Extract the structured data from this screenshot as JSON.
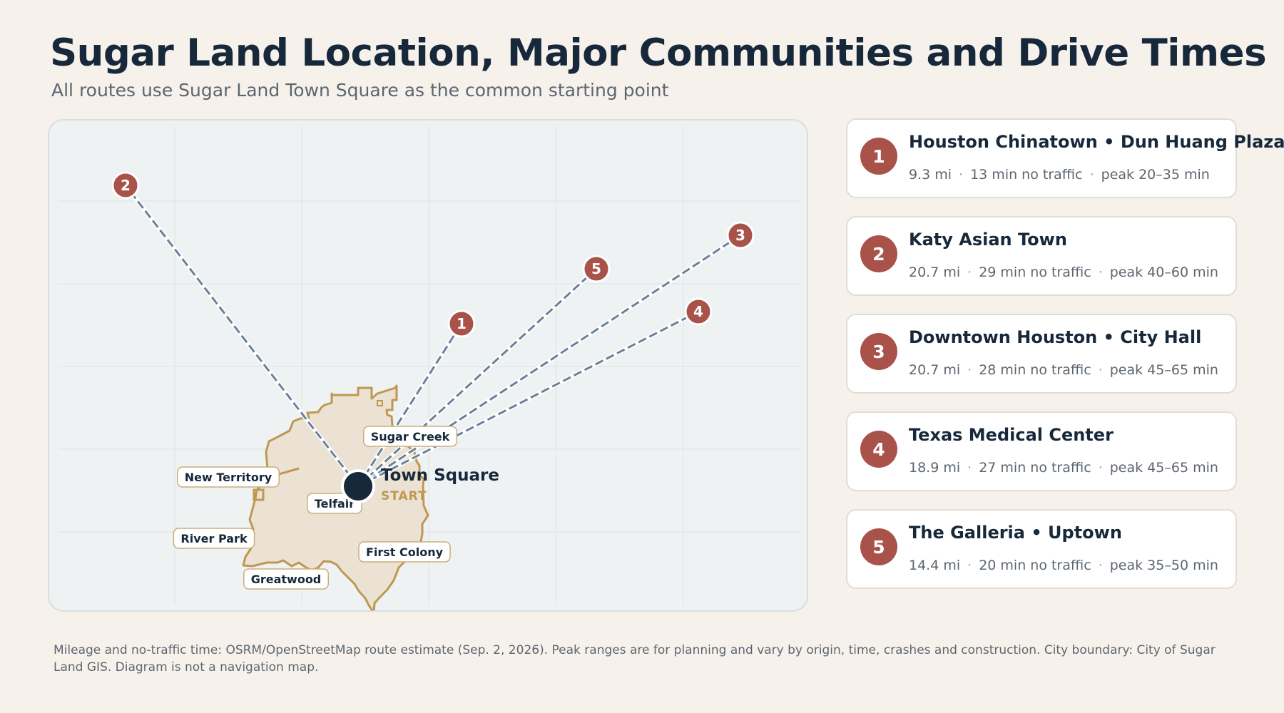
{
  "header": {
    "title": "Sugar Land Location, Major Communities and Drive Times",
    "subtitle": "All routes use Sugar Land Town Square as the common starting point"
  },
  "map": {
    "start": {
      "label": "Town Square",
      "sublabel": "START"
    },
    "neighborhoods": [
      "Sugar Creek",
      "New Territory",
      "Telfair",
      "River Park",
      "First Colony",
      "Greatwood"
    ],
    "markers": [
      "1",
      "2",
      "3",
      "4",
      "5"
    ],
    "colors": {
      "boundary": "#bf9850",
      "city_fill": "#ebe2d4",
      "route": "#6b809a",
      "marker": "#a8524a",
      "start": "#17283a"
    }
  },
  "destinations": [
    {
      "num": "1",
      "name": "Houston Chinatown • Dun Huang Plaza",
      "distance": "9.3 mi",
      "no_traffic": "13 min no traffic",
      "peak": "peak 20–35 min"
    },
    {
      "num": "2",
      "name": "Katy Asian Town",
      "distance": "20.7 mi",
      "no_traffic": "29 min no traffic",
      "peak": "peak 40–60 min"
    },
    {
      "num": "3",
      "name": "Downtown Houston • City Hall",
      "distance": "20.7 mi",
      "no_traffic": "28 min no traffic",
      "peak": "peak 45–65 min"
    },
    {
      "num": "4",
      "name": "Texas Medical Center",
      "distance": "18.9 mi",
      "no_traffic": "27 min no traffic",
      "peak": "peak 45–65 min"
    },
    {
      "num": "5",
      "name": "The Galleria • Uptown",
      "distance": "14.4 mi",
      "no_traffic": "20 min no traffic",
      "peak": "peak 35–50 min"
    }
  ],
  "stat_separator": "·",
  "footnote": "Mileage and no-traffic time: OSRM/OpenStreetMap route estimate (Sep. 2, 2026). Peak ranges are for planning and vary by origin, time, crashes and construction. City boundary: City of Sugar Land GIS. Diagram is not a navigation map."
}
